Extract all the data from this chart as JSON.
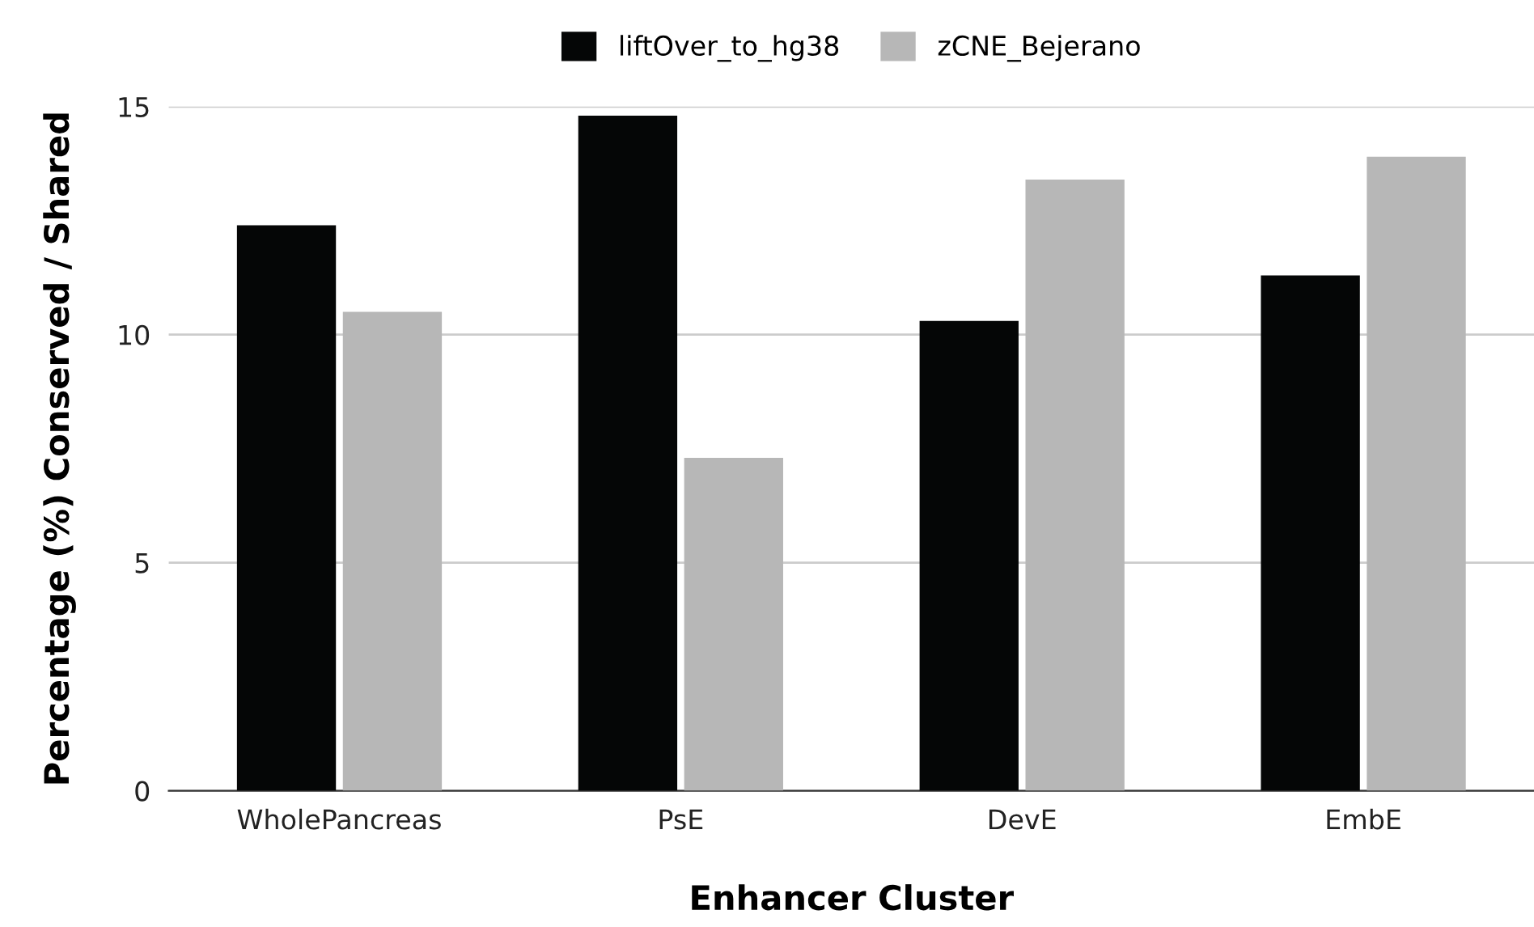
{
  "chart_data": {
    "type": "bar",
    "xlabel": "Enhancer Cluster",
    "ylabel": "Percentage (%) Conserved / Shared",
    "categories": [
      "WholePancreas",
      "PsE",
      "DevE",
      "EmbE"
    ],
    "series": [
      {
        "name": "liftOver_to_hg38",
        "color": "#050606",
        "values": [
          12.4,
          14.8,
          10.3,
          11.3
        ]
      },
      {
        "name": "zCNE_Bejerano",
        "color": "#b7b7b7",
        "values": [
          10.5,
          7.3,
          13.4,
          13.9
        ]
      }
    ],
    "ylim": [
      0,
      15
    ],
    "yticks": [
      0,
      5,
      10,
      15
    ],
    "grid": "y",
    "legend": "top"
  }
}
